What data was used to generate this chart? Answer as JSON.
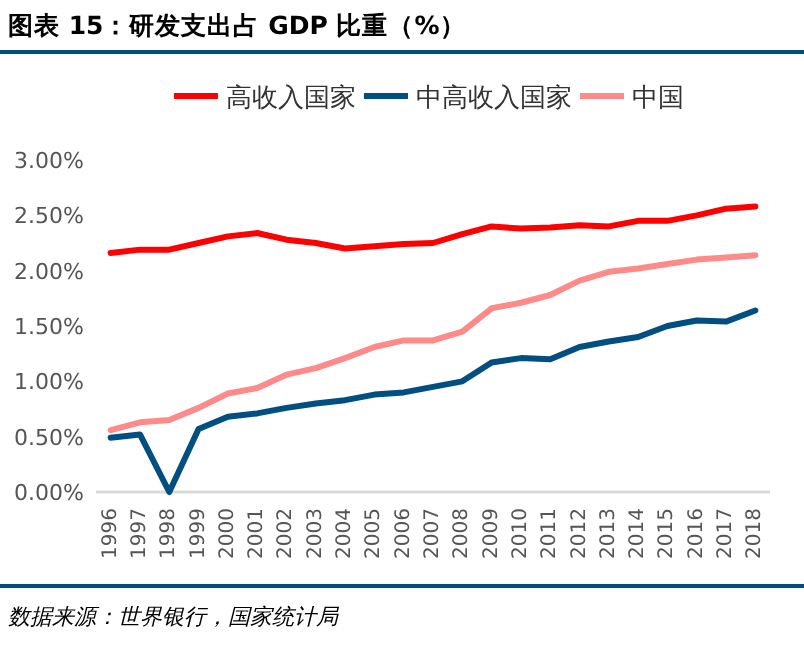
{
  "chart_data": {
    "type": "line",
    "title": "图表 15：研发支出占 GDP 比重（%）",
    "categories": [
      "1996",
      "1997",
      "1998",
      "1999",
      "2000",
      "2001",
      "2002",
      "2003",
      "2004",
      "2005",
      "2006",
      "2007",
      "2008",
      "2009",
      "2010",
      "2011",
      "2012",
      "2013",
      "2014",
      "2015",
      "2016",
      "2017",
      "2018"
    ],
    "series": [
      {
        "name": "高收入国家",
        "color": "#ff0000",
        "values": [
          2.16,
          2.19,
          2.19,
          2.25,
          2.31,
          2.34,
          2.28,
          2.25,
          2.2,
          2.22,
          2.24,
          2.25,
          2.33,
          2.4,
          2.38,
          2.39,
          2.41,
          2.4,
          2.45,
          2.45,
          2.5,
          2.56,
          2.58
        ]
      },
      {
        "name": "中高收入国家",
        "color": "#004f80",
        "values": [
          0.49,
          0.52,
          0.0,
          0.57,
          0.68,
          0.71,
          0.76,
          0.8,
          0.83,
          0.88,
          0.9,
          0.95,
          1.0,
          1.17,
          1.21,
          1.2,
          1.31,
          1.36,
          1.4,
          1.5,
          1.55,
          1.54,
          1.64
        ]
      },
      {
        "name": "中国",
        "color": "#ff8a8a",
        "values": [
          0.56,
          0.63,
          0.65,
          0.76,
          0.89,
          0.94,
          1.06,
          1.12,
          1.21,
          1.31,
          1.37,
          1.37,
          1.45,
          1.66,
          1.71,
          1.78,
          1.91,
          1.99,
          2.02,
          2.06,
          2.1,
          2.12,
          2.14
        ]
      }
    ],
    "ylim": [
      0,
      3
    ],
    "yticks": [
      {
        "value": 0,
        "label": "0.00%"
      },
      {
        "value": 0.5,
        "label": "0.50%"
      },
      {
        "value": 1,
        "label": "1.00%"
      },
      {
        "value": 1.5,
        "label": "1.50%"
      },
      {
        "value": 2,
        "label": "2.00%"
      },
      {
        "value": 2.5,
        "label": "2.50%"
      },
      {
        "value": 3,
        "label": "3.00%"
      }
    ],
    "legend": "top",
    "grid": false,
    "marker": "none",
    "line_style": "solid",
    "annotations": [
      "数据来源：世界银行，国家统计局"
    ]
  }
}
